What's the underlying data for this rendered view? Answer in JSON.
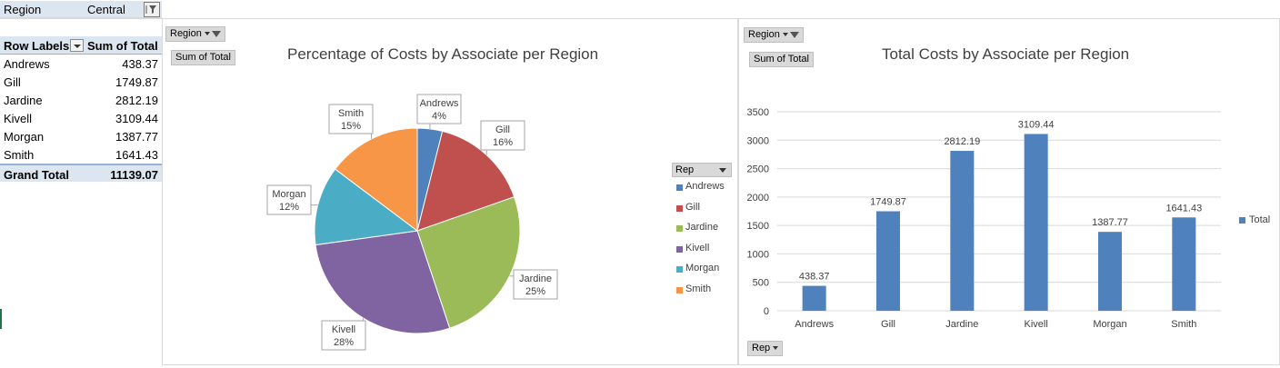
{
  "report_filter": {
    "label": "Region",
    "value": "Central"
  },
  "pivot": {
    "header_rows": "Row Labels",
    "header_sum": "Sum of Total",
    "rows": [
      {
        "name": "Andrews",
        "value": "438.37"
      },
      {
        "name": "Gill",
        "value": "1749.87"
      },
      {
        "name": "Jardine",
        "value": "2812.19"
      },
      {
        "name": "Kivell",
        "value": "3109.44"
      },
      {
        "name": "Morgan",
        "value": "1387.77"
      },
      {
        "name": "Smith",
        "value": "1641.43"
      }
    ],
    "grand_total_label": "Grand Total",
    "grand_total_value": "11139.07"
  },
  "pie_chart": {
    "region_button": "Region",
    "sum_button": "Sum of Total",
    "legend_title": "Rep"
  },
  "bar_chart": {
    "region_button": "Region",
    "sum_button": "Sum of Total",
    "rep_button": "Rep",
    "legend_label": "Total"
  },
  "colors": {
    "Andrews": "#4f81bd",
    "Gill": "#c0504d",
    "Jardine": "#9bbb59",
    "Kivell": "#8064a2",
    "Morgan": "#4bacc6",
    "Smith": "#f79646",
    "bar": "#4f81bd"
  },
  "chart_data": [
    {
      "type": "pie",
      "title": "Percentage of Costs by Associate per Region",
      "categories": [
        "Andrews",
        "Gill",
        "Jardine",
        "Kivell",
        "Morgan",
        "Smith"
      ],
      "values": [
        438.37,
        1749.87,
        2812.19,
        3109.44,
        1387.77,
        1641.43
      ],
      "data_labels": [
        "4%",
        "16%",
        "25%",
        "28%",
        "12%",
        "15%"
      ],
      "legend": "right"
    },
    {
      "type": "bar",
      "title": "Total Costs by Associate per Region",
      "categories": [
        "Andrews",
        "Gill",
        "Jardine",
        "Kivell",
        "Morgan",
        "Smith"
      ],
      "series": [
        {
          "name": "Total",
          "values": [
            438.37,
            1749.87,
            2812.19,
            3109.44,
            1387.77,
            1641.43
          ]
        }
      ],
      "data_labels": [
        "438.37",
        "1749.87",
        "2812.19",
        "3109.44",
        "1387.77",
        "1641.43"
      ],
      "ylim": [
        0,
        3500
      ],
      "yticks": [
        "0",
        "500",
        "1000",
        "1500",
        "2000",
        "2500",
        "3000",
        "3500"
      ],
      "grid": true,
      "legend": "right"
    }
  ]
}
